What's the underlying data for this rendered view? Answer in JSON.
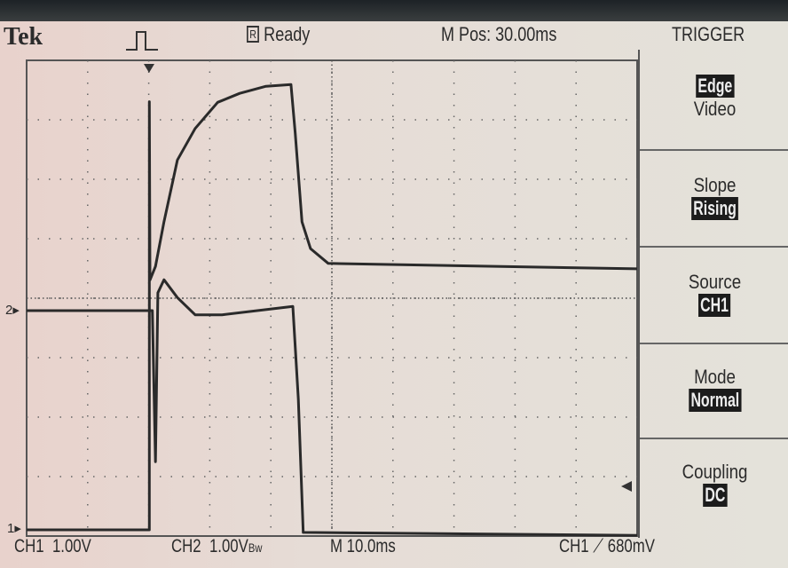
{
  "header": {
    "brand": "Tek",
    "acq_icon": "pulse-icon",
    "run_state_badge": "R",
    "run_state": "Ready",
    "position": "M Pos: 30.00ms",
    "menu_title": "TRIGGER"
  },
  "menu": {
    "type": {
      "selected": "Edge",
      "other": "Video"
    },
    "slope": {
      "label": "Slope",
      "value": "Rising"
    },
    "source": {
      "label": "Source",
      "value": "CH1"
    },
    "mode": {
      "label": "Mode",
      "value": "Normal"
    },
    "coupling": {
      "label": "Coupling",
      "value": "DC"
    }
  },
  "footer": {
    "ch1": "CH1",
    "ch1_scale": "1.00V",
    "ch2": "CH2",
    "ch2_scale": "1.00V",
    "bw": "Bw",
    "timebase": "M 10.0ms",
    "trig_src": "CH1",
    "trig_slope_icon": "rising-edge-icon",
    "trig_level": "680mV"
  },
  "markers": {
    "ch1": "1",
    "ch2": "2"
  },
  "colors": {
    "trace": "#2a2a2a",
    "highlight_bg": "#1c1c1c"
  },
  "chart_data": {
    "type": "line",
    "xlabel": "",
    "ylabel": "",
    "x_unit": "ms",
    "x_range": [
      0,
      100
    ],
    "grid": true,
    "series": [
      {
        "channel": "CH1",
        "volts_per_div": 1.0,
        "points": [
          [
            0,
            0
          ],
          [
            20.1,
            0
          ],
          [
            20.1,
            7.2
          ],
          [
            20.2,
            4.2
          ],
          [
            21.1,
            4.43
          ],
          [
            22.5,
            5.18
          ],
          [
            24.7,
            6.22
          ],
          [
            27.6,
            6.75
          ],
          [
            31.3,
            7.19
          ],
          [
            34.9,
            7.34
          ],
          [
            39.2,
            7.46
          ],
          [
            43.3,
            7.49
          ],
          [
            44.0,
            6.67
          ],
          [
            45.1,
            5.18
          ],
          [
            46.5,
            4.73
          ],
          [
            49.4,
            4.48
          ],
          [
            100,
            4.39
          ]
        ]
      },
      {
        "channel": "CH2",
        "volts_per_div": 1.0,
        "points": [
          [
            0,
            0
          ],
          [
            20.6,
            0
          ],
          [
            21.1,
            -2.54
          ],
          [
            21.5,
            0.3
          ],
          [
            22.5,
            0.52
          ],
          [
            24.7,
            0.22
          ],
          [
            27.6,
            -0.07
          ],
          [
            32.0,
            -0.07
          ],
          [
            43.6,
            0.07
          ],
          [
            44.5,
            -1.49
          ],
          [
            45.3,
            -3.73
          ],
          [
            100,
            -3.78
          ]
        ]
      }
    ]
  }
}
